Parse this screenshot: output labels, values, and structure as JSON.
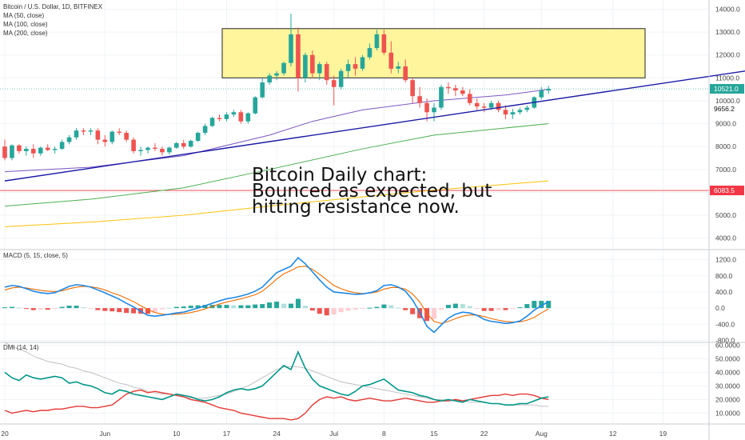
{
  "header": {
    "title": "Bitcoin / U.S. Dollar, 1D, BITFINEX",
    "ma_labels": [
      "MA (50, close)",
      "MA (100, close)",
      "MA (200, close)"
    ]
  },
  "annotation": [
    "Bitcoin Daily chart:",
    "Bounced as expected, but",
    "hitting resistance now."
  ],
  "price_tags": {
    "last": {
      "label": "10521.0",
      "value": 10521,
      "color": "#26a69a"
    },
    "mid": {
      "label": "9656.2",
      "value": 9656.2
    },
    "low": {
      "label": "6083.5",
      "value": 6083.5,
      "color": "#f23645"
    }
  },
  "indicators": {
    "macd_label": "MACD (5, 15, close, 5)",
    "dmi_label": "DMI (14, 14)"
  },
  "colors": {
    "up": "#26a69a",
    "down": "#ef5350",
    "resistance_zone": "#fff59d",
    "trendline": "#1a1aa6",
    "ma50": "#7e57c2",
    "ma100": "#4caf50",
    "ma200": "#ffc107",
    "macd": "#1e88e5",
    "signal": "#ef6c00",
    "di_plus": "#009688",
    "di_minus": "#e53935",
    "adx": "#bbbbbb"
  },
  "chart_data": [
    {
      "type": "candlestick",
      "title": "Bitcoin / U.S. Dollar, 1D, BITFINEX",
      "x_ticks": [
        "20",
        "Jun",
        "10",
        "17",
        "24",
        "Jul",
        "8",
        "15",
        "22",
        "Aug",
        "12",
        "19"
      ],
      "y_ticks": [
        "4000.0",
        "5000.0",
        "6000.0",
        "7000.0",
        "8000.0",
        "9000.0",
        "10000.0",
        "11000.0",
        "12000.0",
        "13000.0",
        "14000.0"
      ],
      "ylim": [
        3500,
        14400
      ],
      "resistance_zone": [
        11000,
        13150
      ],
      "horizontal_line": 6083.5,
      "candles": [
        [
          8000,
          8300,
          7400,
          7500
        ],
        [
          7500,
          8100,
          7400,
          8050
        ],
        [
          8050,
          8100,
          7700,
          7800
        ],
        [
          7800,
          8000,
          7600,
          7900
        ],
        [
          7900,
          8100,
          7500,
          7700
        ],
        [
          7700,
          8000,
          7600,
          7950
        ],
        [
          7950,
          8100,
          7800,
          7850
        ],
        [
          7850,
          8000,
          7700,
          7900
        ],
        [
          7900,
          8300,
          7850,
          8200
        ],
        [
          8200,
          8500,
          8100,
          8400
        ],
        [
          8400,
          8800,
          8300,
          8700
        ],
        [
          8700,
          8800,
          8500,
          8650
        ],
        [
          8650,
          8800,
          8500,
          8700
        ],
        [
          8700,
          8800,
          8100,
          8300
        ],
        [
          8300,
          8500,
          8000,
          8200
        ],
        [
          8200,
          8700,
          8100,
          8650
        ],
        [
          8650,
          8800,
          8500,
          8600
        ],
        [
          8600,
          8700,
          8200,
          8300
        ],
        [
          8300,
          8400,
          7700,
          7800
        ],
        [
          7800,
          8000,
          7600,
          7850
        ],
        [
          7850,
          8000,
          7700,
          7950
        ],
        [
          7950,
          8150,
          7800,
          7900
        ],
        [
          7900,
          8000,
          7600,
          7750
        ],
        [
          7750,
          8000,
          7650,
          7950
        ],
        [
          7950,
          8200,
          7900,
          8150
        ],
        [
          8150,
          8300,
          7900,
          8000
        ],
        [
          8000,
          8300,
          7950,
          8250
        ],
        [
          8250,
          8650,
          8200,
          8600
        ],
        [
          8600,
          9000,
          8500,
          8900
        ],
        [
          8900,
          9300,
          8850,
          9250
        ],
        [
          9250,
          9400,
          9100,
          9200
        ],
        [
          9200,
          9500,
          9100,
          9400
        ],
        [
          9400,
          9600,
          9300,
          9500
        ],
        [
          9500,
          9600,
          9000,
          9100
        ],
        [
          9100,
          9500,
          9000,
          9450
        ],
        [
          9450,
          10200,
          9400,
          10150
        ],
        [
          10150,
          11000,
          10100,
          10800
        ],
        [
          10800,
          11200,
          10700,
          11100
        ],
        [
          11100,
          11300,
          10900,
          11200
        ],
        [
          11200,
          11700,
          11100,
          11650
        ],
        [
          11650,
          13800,
          11500,
          12900
        ],
        [
          12900,
          13200,
          10400,
          11000
        ],
        [
          11000,
          12100,
          10800,
          12000
        ],
        [
          12000,
          12200,
          11000,
          11200
        ],
        [
          11200,
          11700,
          10900,
          11600
        ],
        [
          11600,
          11700,
          10700,
          10900
        ],
        [
          10900,
          11100,
          9800,
          10600
        ],
        [
          10600,
          11400,
          10500,
          11300
        ],
        [
          11300,
          11800,
          11000,
          11600
        ],
        [
          11600,
          11900,
          11100,
          11400
        ],
        [
          11400,
          12000,
          11300,
          11900
        ],
        [
          11900,
          12500,
          11800,
          12300
        ],
        [
          12300,
          13100,
          12200,
          12900
        ],
        [
          12900,
          13100,
          12000,
          12100
        ],
        [
          12100,
          12600,
          11200,
          11400
        ],
        [
          11400,
          11700,
          11200,
          11500
        ],
        [
          11500,
          11800,
          10800,
          10900
        ],
        [
          10900,
          11000,
          9900,
          10200
        ],
        [
          10200,
          10600,
          9700,
          9900
        ],
        [
          9900,
          10100,
          9100,
          9500
        ],
        [
          9500,
          9900,
          9100,
          9700
        ],
        [
          9700,
          10700,
          9600,
          10600
        ],
        [
          10600,
          10800,
          10300,
          10550
        ],
        [
          10550,
          10700,
          10200,
          10450
        ],
        [
          10450,
          10600,
          10200,
          10300
        ],
        [
          10300,
          10500,
          9800,
          9900
        ],
        [
          9900,
          10100,
          9600,
          9750
        ],
        [
          9750,
          9900,
          9500,
          9700
        ],
        [
          9700,
          10000,
          9600,
          9900
        ],
        [
          9900,
          10000,
          9500,
          9600
        ],
        [
          9600,
          9800,
          9200,
          9400
        ],
        [
          9400,
          9650,
          9200,
          9500
        ],
        [
          9500,
          9700,
          9400,
          9600
        ],
        [
          9600,
          9800,
          9500,
          9700
        ],
        [
          9700,
          10200,
          9650,
          10150
        ],
        [
          10150,
          10600,
          10050,
          10450
        ],
        [
          10450,
          10650,
          10300,
          10521
        ]
      ],
      "ma50": [
        [
          0,
          6900
        ],
        [
          12,
          7100
        ],
        [
          25,
          7600
        ],
        [
          37,
          8500
        ],
        [
          43,
          9100
        ],
        [
          50,
          9600
        ],
        [
          60,
          10000
        ],
        [
          70,
          10250
        ],
        [
          76,
          10500
        ]
      ],
      "ma100": [
        [
          0,
          5400
        ],
        [
          12,
          5700
        ],
        [
          25,
          6200
        ],
        [
          37,
          7000
        ],
        [
          50,
          7900
        ],
        [
          60,
          8500
        ],
        [
          76,
          9000
        ]
      ],
      "ma200": [
        [
          0,
          4500
        ],
        [
          12,
          4700
        ],
        [
          25,
          5000
        ],
        [
          37,
          5400
        ],
        [
          50,
          5800
        ],
        [
          60,
          6100
        ],
        [
          76,
          6500
        ]
      ],
      "trendline": [
        [
          0,
          6500
        ],
        [
          110,
          11600
        ]
      ]
    },
    {
      "type": "line",
      "title": "MACD (5, 15, close, 5)",
      "y_ticks": [
        "-800.0",
        "-400.0",
        "0.0",
        "400.0",
        "800.0",
        "1200.0"
      ],
      "ylim": [
        -850,
        1450
      ],
      "series": [
        {
          "values": [
            520,
            560,
            540,
            480,
            420,
            380,
            360,
            380,
            460,
            540,
            580,
            560,
            520,
            450,
            380,
            300,
            220,
            120,
            30,
            -80,
            -180,
            -200,
            -180,
            -150,
            -120,
            -100,
            -50,
            0,
            60,
            120,
            180,
            230,
            260,
            300,
            350,
            420,
            520,
            700,
            880,
            960,
            1040,
            1250,
            1100,
            900,
            700,
            520,
            400,
            380,
            360,
            340,
            350,
            380,
            430,
            560,
            580,
            520,
            420,
            200,
            -100,
            -450,
            -600,
            -420,
            -250,
            -150,
            -100,
            -120,
            -180,
            -280,
            -330,
            -350,
            -380,
            -360,
            -320,
            -200,
            -50,
            60,
            160
          ]
        },
        {
          "values": [
            450,
            500,
            520,
            500,
            470,
            440,
            420,
            410,
            430,
            480,
            520,
            540,
            530,
            500,
            450,
            380,
            320,
            240,
            160,
            60,
            -40,
            -110,
            -150,
            -160,
            -150,
            -140,
            -110,
            -70,
            -20,
            40,
            100,
            150,
            190,
            230,
            280,
            330,
            420,
            560,
            720,
            850,
            930,
            1020,
            1040,
            960,
            840,
            700,
            560,
            480,
            420,
            380,
            360,
            370,
            400,
            470,
            510,
            510,
            470,
            350,
            150,
            -130,
            -330,
            -380,
            -330,
            -260,
            -200,
            -170,
            -175,
            -210,
            -260,
            -300,
            -330,
            -345,
            -340,
            -300,
            -230,
            -120,
            -20
          ]
        }
      ],
      "histogram": [
        20,
        30,
        15,
        -20,
        -50,
        -40,
        -40,
        -20,
        30,
        60,
        60,
        20,
        -10,
        -50,
        -70,
        -80,
        -100,
        -120,
        -130,
        -140,
        -140,
        -90,
        -30,
        10,
        30,
        40,
        60,
        70,
        80,
        80,
        80,
        80,
        70,
        70,
        70,
        90,
        100,
        140,
        160,
        110,
        110,
        230,
        60,
        -60,
        -140,
        -180,
        -160,
        -100,
        -60,
        -40,
        -10,
        10,
        30,
        90,
        70,
        10,
        -50,
        -150,
        -250,
        -320,
        -270,
        -40,
        80,
        110,
        100,
        50,
        -5,
        -70,
        -70,
        -50,
        -50,
        -15,
        20,
        100,
        180,
        180,
        180
      ]
    },
    {
      "type": "line",
      "title": "DMI (14, 14)",
      "y_ticks": [
        "10.0000",
        "20.0000",
        "30.0000",
        "40.0000",
        "50.0000",
        "60.0000"
      ],
      "ylim": [
        2,
        62
      ],
      "series": [
        {
          "values": [
            40,
            36,
            34,
            38,
            36,
            35,
            36,
            37,
            36,
            32,
            33,
            31,
            30,
            28,
            25,
            24,
            27,
            26,
            24,
            23,
            22,
            21,
            20,
            22,
            24,
            23,
            22,
            20,
            19,
            20,
            22,
            25,
            27,
            28,
            27,
            28,
            30,
            35,
            40,
            45,
            42,
            55,
            43,
            35,
            30,
            28,
            26,
            24,
            23,
            26,
            30,
            31,
            33,
            35,
            31,
            27,
            26,
            25,
            23,
            22,
            20,
            19,
            20,
            19,
            18,
            20,
            19,
            18,
            17,
            17,
            16,
            16,
            17,
            17,
            19,
            21,
            22
          ]
        },
        {
          "values": [
            12,
            10,
            11,
            12,
            11,
            12,
            12,
            13,
            13,
            14,
            15,
            15,
            14,
            14,
            15,
            16,
            20,
            24,
            26,
            27,
            25,
            26,
            25,
            24,
            23,
            22,
            20,
            19,
            18,
            16,
            14,
            13,
            12,
            10,
            9,
            8,
            7,
            6,
            6,
            6,
            5,
            6,
            10,
            16,
            20,
            22,
            21,
            22,
            20,
            19,
            20,
            21,
            20,
            19,
            19,
            20,
            21,
            20,
            19,
            18,
            18,
            19,
            19,
            20,
            19,
            20,
            21,
            22,
            23,
            23,
            24,
            23,
            24,
            24,
            23,
            21,
            20
          ]
        },
        {
          "values": [
            62,
            59,
            57,
            55,
            52,
            50,
            48,
            47,
            46,
            44,
            43,
            41,
            40,
            38,
            36,
            34,
            32,
            31,
            29,
            28,
            26,
            25,
            24,
            24,
            23,
            22,
            21,
            21,
            21,
            22,
            23,
            24,
            26,
            28,
            30,
            33,
            36,
            39,
            42,
            44,
            44,
            44,
            43,
            41,
            39,
            37,
            35,
            33,
            32,
            31,
            30,
            29,
            28,
            27,
            26,
            25,
            24,
            23,
            22,
            21,
            20,
            20,
            19,
            19,
            19,
            18,
            18,
            18,
            17,
            17,
            16,
            16,
            16,
            16,
            16,
            15,
            15
          ]
        }
      ]
    }
  ]
}
